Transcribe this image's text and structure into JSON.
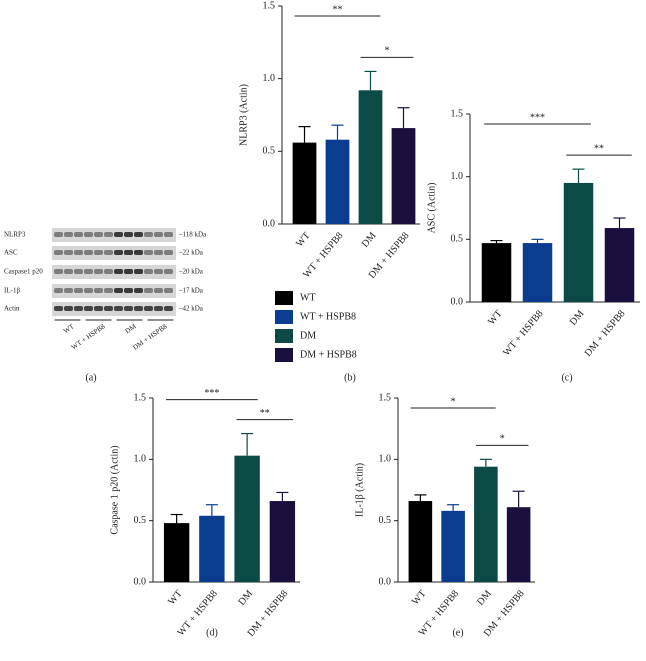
{
  "blot": {
    "panel": "(a)",
    "rows": [
      {
        "label": "NLRP3",
        "size": "–118 kDa"
      },
      {
        "label": "ASC",
        "size": "–22 kDa"
      },
      {
        "label": "Caspase1 p20",
        "size": "–20 kDa"
      },
      {
        "label": "IL-1β",
        "size": "–17 kDa"
      },
      {
        "label": "Actin",
        "size": "–42 kDa"
      }
    ],
    "lanes": [
      "WT",
      "WT + HSPB8",
      "DM",
      "DM + HSPB8"
    ]
  },
  "chart_data": [
    {
      "type": "bar",
      "panel": "(b)",
      "y_label": "NLRP3 (Actin)",
      "categories": [
        "WT",
        "WT + HSPB8",
        "DM",
        "DM + HSPB8"
      ],
      "values": [
        0.56,
        0.58,
        0.92,
        0.66
      ],
      "errors": [
        0.11,
        0.1,
        0.13,
        0.14
      ],
      "colors": [
        "#000000",
        "#0a3d8f",
        "#0b4a45",
        "#1b0f3d"
      ],
      "ylim": [
        0,
        1.5
      ],
      "yticks": [
        {
          "value": 0,
          "label": "0.0"
        },
        {
          "value": 0.5,
          "label": "0.5"
        },
        {
          "value": 1,
          "label": "1.0"
        },
        {
          "value": 1.5,
          "label": "1.5"
        }
      ],
      "annotations": [
        {
          "label": "**",
          "between": [
            0,
            2
          ]
        },
        {
          "label": "*",
          "between": [
            2,
            3
          ]
        }
      ],
      "legend": true
    },
    {
      "type": "bar",
      "panel": "(c)",
      "y_label": "ASC (Actin)",
      "categories": [
        "WT",
        "WT + HSPB8",
        "DM",
        "DM + HSPB8"
      ],
      "values": [
        0.47,
        0.47,
        0.95,
        0.59
      ],
      "errors": [
        0.02,
        0.03,
        0.11,
        0.08
      ],
      "colors": [
        "#000000",
        "#0a3d8f",
        "#0b4a45",
        "#1b0f3d"
      ],
      "ylim": [
        0,
        1.5
      ],
      "yticks": [
        {
          "value": 0,
          "label": "0.0"
        },
        {
          "value": 0.5,
          "label": "0.5"
        },
        {
          "value": 1,
          "label": "1.0"
        },
        {
          "value": 1.5,
          "label": "1.5"
        }
      ],
      "annotations": [
        {
          "label": "***",
          "between": [
            0,
            2
          ]
        },
        {
          "label": "**",
          "between": [
            2,
            3
          ]
        }
      ]
    },
    {
      "type": "bar",
      "panel": "(d)",
      "y_label": "Caspase 1 p20 (Actin)",
      "categories": [
        "WT",
        "WT + HSPB8",
        "DM",
        "DM + HSPB8"
      ],
      "values": [
        0.48,
        0.54,
        1.03,
        0.66
      ],
      "errors": [
        0.07,
        0.09,
        0.18,
        0.07
      ],
      "colors": [
        "#000000",
        "#0a3d8f",
        "#0b4a45",
        "#1b0f3d"
      ],
      "ylim": [
        0,
        1.5
      ],
      "yticks": [
        {
          "value": 0,
          "label": "0.0"
        },
        {
          "value": 0.5,
          "label": "0.5"
        },
        {
          "value": 1,
          "label": "1.0"
        },
        {
          "value": 1.5,
          "label": "1.5"
        }
      ],
      "annotations": [
        {
          "label": "***",
          "between": [
            0,
            2
          ]
        },
        {
          "label": "**",
          "between": [
            2,
            3
          ]
        }
      ]
    },
    {
      "type": "bar",
      "panel": "(e)",
      "y_label": "IL-1β (Actin)",
      "categories": [
        "WT",
        "WT + HSPB8",
        "DM",
        "DM + HSPB8"
      ],
      "values": [
        0.66,
        0.58,
        0.94,
        0.61
      ],
      "errors": [
        0.05,
        0.05,
        0.06,
        0.13
      ],
      "colors": [
        "#000000",
        "#0a3d8f",
        "#0b4a45",
        "#1b0f3d"
      ],
      "ylim": [
        0,
        1.5
      ],
      "yticks": [
        {
          "value": 0,
          "label": "0.0"
        },
        {
          "value": 0.5,
          "label": "0.5"
        },
        {
          "value": 1,
          "label": "1.0"
        },
        {
          "value": 1.5,
          "label": "1.5"
        }
      ],
      "annotations": [
        {
          "label": "*",
          "between": [
            0,
            2
          ]
        },
        {
          "label": "*",
          "between": [
            2,
            3
          ]
        }
      ]
    }
  ]
}
